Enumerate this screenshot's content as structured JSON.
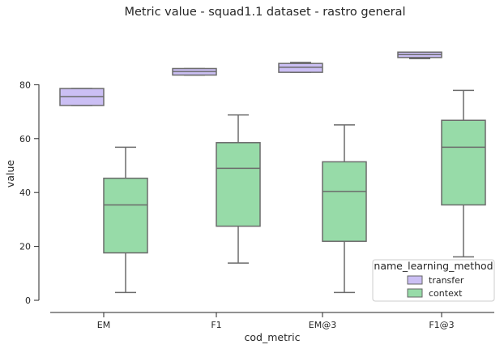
{
  "chart_data": {
    "type": "box",
    "title": "Metric value - squad1.1 dataset - rastro general",
    "xlabel": "cod_metric",
    "ylabel": "value",
    "categories": [
      "EM",
      "F1",
      "EM@3",
      "F1@3"
    ],
    "yticks": [
      0,
      20,
      40,
      60,
      80
    ],
    "ylim": [
      -1,
      100
    ],
    "legend": {
      "title": "name_learning_method",
      "position": "lower-right",
      "entries": [
        {
          "name": "transfer",
          "color": "#cbbff4"
        },
        {
          "name": "context",
          "color": "#97dba8"
        }
      ]
    },
    "series": [
      {
        "name": "transfer",
        "color": "#cbbff4",
        "boxes": [
          {
            "whisker_low": 72.3,
            "q1": 72.3,
            "median": 75.6,
            "q3": 78.6,
            "whisker_high": 78.6
          },
          {
            "whisker_low": 83.6,
            "q1": 83.6,
            "median": 84.9,
            "q3": 86.0,
            "whisker_high": 86.0
          },
          {
            "whisker_low": 84.6,
            "q1": 84.6,
            "median": 86.5,
            "q3": 87.9,
            "whisker_high": 88.3
          },
          {
            "whisker_low": 89.7,
            "q1": 90.1,
            "median": 91.2,
            "q3": 92.1,
            "whisker_high": 92.1
          }
        ]
      },
      {
        "name": "context",
        "color": "#97dba8",
        "boxes": [
          {
            "whisker_low": 2.9,
            "q1": 17.6,
            "median": 35.4,
            "q3": 45.3,
            "whisker_high": 56.8
          },
          {
            "whisker_low": 13.8,
            "q1": 27.5,
            "median": 49.0,
            "q3": 58.5,
            "whisker_high": 68.8
          },
          {
            "whisker_low": 2.9,
            "q1": 21.9,
            "median": 40.4,
            "q3": 51.4,
            "whisker_high": 65.1
          },
          {
            "whisker_low": 16.1,
            "q1": 35.4,
            "median": 56.8,
            "q3": 66.8,
            "whisker_high": 77.9
          }
        ]
      }
    ]
  }
}
